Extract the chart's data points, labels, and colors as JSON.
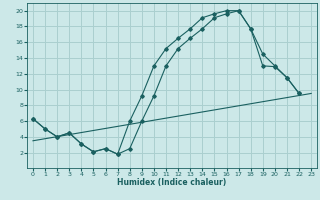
{
  "xlabel": "Humidex (Indice chaleur)",
  "bg_color": "#cce8e8",
  "grid_color": "#aacfcf",
  "line_color": "#1a6060",
  "xlim": [
    -0.5,
    23.5
  ],
  "ylim": [
    0,
    21
  ],
  "xticks": [
    0,
    1,
    2,
    3,
    4,
    5,
    6,
    7,
    8,
    9,
    10,
    11,
    12,
    13,
    14,
    15,
    16,
    17,
    18,
    19,
    20,
    21,
    22,
    23
  ],
  "yticks": [
    2,
    4,
    6,
    8,
    10,
    12,
    14,
    16,
    18,
    20
  ],
  "line1_x": [
    0,
    1,
    2,
    3,
    4,
    5,
    6,
    7,
    8,
    9,
    10,
    11,
    12,
    13,
    14,
    15,
    16,
    17,
    18,
    19,
    20,
    21,
    22
  ],
  "line1_y": [
    6.3,
    5.0,
    4.0,
    4.5,
    3.1,
    2.1,
    2.5,
    1.8,
    6.0,
    9.2,
    13.0,
    15.2,
    16.5,
    17.7,
    19.1,
    19.6,
    20.0,
    20.0,
    17.7,
    13.0,
    12.9,
    11.5,
    9.5
  ],
  "line3_x": [
    0,
    1,
    2,
    3,
    4,
    5,
    6,
    7,
    8,
    9,
    10,
    11,
    12,
    13,
    14,
    15,
    16,
    17,
    18,
    19,
    20,
    21,
    22
  ],
  "line3_y": [
    6.3,
    5.0,
    4.0,
    4.5,
    3.1,
    2.1,
    2.5,
    1.8,
    2.5,
    6.0,
    9.2,
    13.0,
    15.2,
    16.5,
    17.7,
    19.1,
    19.6,
    20.0,
    17.7,
    14.5,
    13.0,
    11.5,
    9.5
  ],
  "line2_x": [
    0,
    23
  ],
  "line2_y": [
    3.5,
    9.5
  ]
}
